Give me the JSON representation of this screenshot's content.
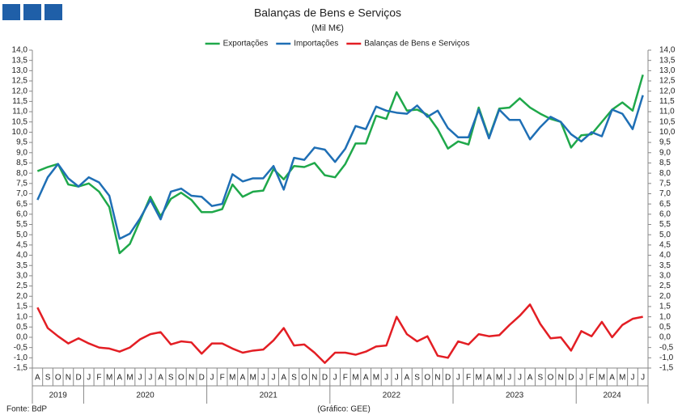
{
  "chart_data": {
    "type": "line",
    "title": "Balanças de Bens e Serviços",
    "subtitle": "(Mil M€)",
    "source": "Fonte: BdP",
    "credit": "(Gráfico: GEE)",
    "categories": [
      "A",
      "S",
      "O",
      "N",
      "D",
      "J",
      "F",
      "M",
      "A",
      "M",
      "J",
      "J",
      "A",
      "S",
      "O",
      "N",
      "D",
      "J",
      "F",
      "M",
      "A",
      "M",
      "J",
      "J",
      "A",
      "S",
      "O",
      "N",
      "D",
      "J",
      "F",
      "M",
      "A",
      "M",
      "J",
      "J",
      "A",
      "S",
      "O",
      "N",
      "D",
      "J",
      "F",
      "M",
      "A",
      "M",
      "J",
      "J",
      "A",
      "S",
      "O",
      "N",
      "D",
      "J",
      "F",
      "M",
      "A",
      "M",
      "J",
      "J"
    ],
    "years": [
      "2019",
      "2020",
      "2021",
      "2022",
      "2023",
      "2024"
    ],
    "series": [
      {
        "name": "Exportações",
        "color": "#1fa84a",
        "values": [
          8.1,
          8.3,
          8.45,
          7.45,
          7.35,
          7.5,
          7.1,
          6.35,
          4.1,
          4.55,
          5.7,
          6.85,
          5.9,
          6.75,
          7.05,
          6.7,
          6.1,
          6.1,
          6.25,
          7.45,
          6.85,
          7.1,
          7.15,
          8.2,
          7.7,
          8.35,
          8.3,
          8.5,
          7.9,
          7.8,
          8.45,
          9.45,
          9.45,
          10.8,
          10.65,
          11.95,
          11.05,
          11.1,
          10.85,
          10.15,
          9.2,
          9.55,
          9.4,
          11.2,
          9.75,
          11.15,
          11.2,
          11.65,
          11.2,
          10.9,
          10.65,
          10.5,
          9.25,
          9.85,
          9.9,
          10.5,
          11.1,
          11.45,
          11.05,
          12.8
        ]
      },
      {
        "name": "Importações",
        "color": "#1f6fb5",
        "values": [
          6.7,
          7.8,
          8.45,
          7.75,
          7.35,
          7.8,
          7.55,
          6.9,
          4.8,
          5.05,
          5.8,
          6.7,
          5.75,
          7.1,
          7.25,
          6.9,
          6.85,
          6.4,
          6.5,
          7.95,
          7.6,
          7.75,
          7.75,
          8.35,
          7.2,
          8.75,
          8.65,
          9.25,
          9.15,
          8.55,
          9.2,
          10.3,
          10.15,
          11.25,
          11.05,
          10.95,
          10.9,
          11.3,
          10.75,
          11.05,
          10.2,
          9.75,
          9.75,
          11.1,
          9.7,
          11.1,
          10.6,
          10.6,
          9.65,
          10.25,
          10.75,
          10.5,
          9.9,
          9.55,
          10.0,
          9.8,
          11.1,
          10.9,
          10.15,
          11.8
        ]
      },
      {
        "name": "Balanças de Bens e Serviços",
        "color": "#e31e24",
        "values": [
          1.45,
          0.45,
          0.05,
          -0.3,
          -0.05,
          -0.3,
          -0.5,
          -0.55,
          -0.7,
          -0.5,
          -0.1,
          0.15,
          0.25,
          -0.35,
          -0.2,
          -0.25,
          -0.8,
          -0.3,
          -0.3,
          -0.55,
          -0.75,
          -0.65,
          -0.6,
          -0.15,
          0.45,
          -0.4,
          -0.35,
          -0.75,
          -1.25,
          -0.75,
          -0.75,
          -0.85,
          -0.7,
          -0.45,
          -0.4,
          1.0,
          0.15,
          -0.2,
          0.05,
          -0.9,
          -1.0,
          -0.2,
          -0.35,
          0.15,
          0.05,
          0.1,
          0.6,
          1.05,
          1.6,
          0.65,
          -0.05,
          0.0,
          -0.65,
          0.3,
          0.05,
          0.75,
          0.0,
          0.6,
          0.9,
          1.0
        ]
      }
    ],
    "ylim": [
      -1.5,
      14.0
    ],
    "y2lim": [
      -1.5,
      14.0
    ],
    "yticks": [
      {
        "value": -1.5,
        "label": "-1,5"
      },
      {
        "value": -1,
        "label": "-1,0"
      },
      {
        "value": -0.5,
        "label": "-0,5"
      },
      {
        "value": 0,
        "label": "0,0"
      },
      {
        "value": 0.5,
        "label": "0,5"
      },
      {
        "value": 1,
        "label": "1,0"
      },
      {
        "value": 1.5,
        "label": "1,5"
      },
      {
        "value": 2,
        "label": "2,0"
      },
      {
        "value": 2.5,
        "label": "2,5"
      },
      {
        "value": 3,
        "label": "3,0"
      },
      {
        "value": 3.5,
        "label": "3,5"
      },
      {
        "value": 4,
        "label": "4,0"
      },
      {
        "value": 4.5,
        "label": "4,5"
      },
      {
        "value": 5,
        "label": "5,0"
      },
      {
        "value": 5.5,
        "label": "5,5"
      },
      {
        "value": 6,
        "label": "6,0"
      },
      {
        "value": 6.5,
        "label": "6,5"
      },
      {
        "value": 7,
        "label": "7,0"
      },
      {
        "value": 7.5,
        "label": "7,5"
      },
      {
        "value": 8,
        "label": "8,0"
      },
      {
        "value": 8.5,
        "label": "8,5"
      },
      {
        "value": 9,
        "label": "9,0"
      },
      {
        "value": 9.5,
        "label": "9,5"
      },
      {
        "value": 10,
        "label": "10,0"
      },
      {
        "value": 10.5,
        "label": "10,5"
      },
      {
        "value": 11,
        "label": "11,0"
      },
      {
        "value": 11.5,
        "label": "11,5"
      },
      {
        "value": 12,
        "label": "12,0"
      },
      {
        "value": 12.5,
        "label": "12,5"
      },
      {
        "value": 13,
        "label": "13,0"
      },
      {
        "value": 13.5,
        "label": "13,5"
      },
      {
        "value": 14,
        "label": "14,0"
      }
    ],
    "y2ticks": [
      {
        "value": -1.5,
        "label": "-1,5"
      },
      {
        "value": -1,
        "label": "-1,0"
      },
      {
        "value": -0.5,
        "label": "-0,5"
      },
      {
        "value": 0,
        "label": "0,0"
      },
      {
        "value": 0.5,
        "label": "0,5"
      },
      {
        "value": 1,
        "label": "1,0"
      },
      {
        "value": 1.5,
        "label": "1,5"
      },
      {
        "value": 2,
        "label": "2,0"
      },
      {
        "value": 2.5,
        "label": "2,5"
      },
      {
        "value": 3,
        "label": "3,0"
      },
      {
        "value": 3.5,
        "label": "3,5"
      },
      {
        "value": 4,
        "label": "4,0"
      },
      {
        "value": 4.5,
        "label": "4,5"
      },
      {
        "value": 5,
        "label": "5,0"
      },
      {
        "value": 5.5,
        "label": "5,5"
      },
      {
        "value": 6,
        "label": "6,0"
      },
      {
        "value": 6.5,
        "label": "6,5"
      },
      {
        "value": 7,
        "label": "7,0"
      },
      {
        "value": 7.5,
        "label": "7,5"
      },
      {
        "value": 8,
        "label": "8,0"
      },
      {
        "value": 8.5,
        "label": "8,5"
      },
      {
        "value": 9,
        "label": "9,0"
      },
      {
        "value": 9.5,
        "label": "9,5"
      },
      {
        "value": 10,
        "label": "10,0"
      },
      {
        "value": 10.5,
        "label": "10,5"
      },
      {
        "value": 11,
        "label": "11,0"
      },
      {
        "value": 11.5,
        "label": "11,5"
      },
      {
        "value": 12,
        "label": "12,0"
      },
      {
        "value": 12.5,
        "label": "12,5"
      },
      {
        "value": 13,
        "label": "13,0"
      },
      {
        "value": 13.5,
        "label": "13,5"
      },
      {
        "value": 14,
        "label": "14,0"
      }
    ],
    "grid": false
  }
}
